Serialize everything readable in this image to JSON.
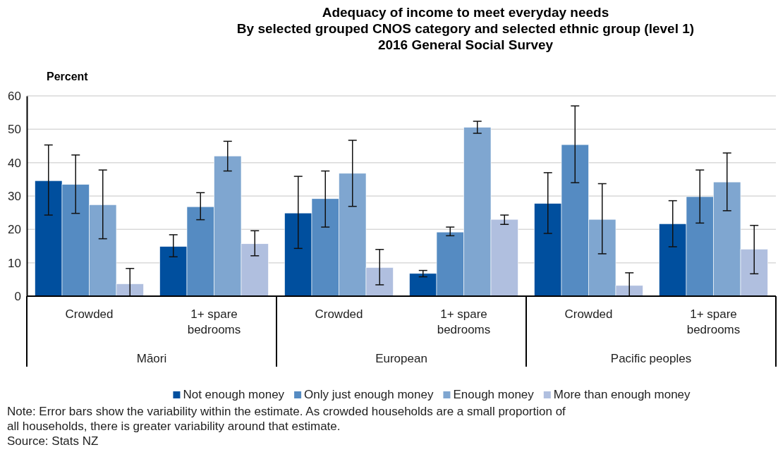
{
  "chart_data": {
    "type": "bar",
    "title": "Adequacy of income to meet everyday needs\nBy selected grouped CNOS category and selected ethnic group (level 1)\n2016 General Social Survey",
    "ylabel": "Percent",
    "categories": [
      "Crowded",
      "1+ spare bedrooms",
      "Crowded",
      "1+ spare bedrooms",
      "Crowded",
      "1+ spare bedrooms"
    ],
    "series": [
      {
        "name": "Not enough money",
        "color": "#004f9e",
        "values": [
          34.6,
          14.9,
          24.9,
          6.8,
          27.8,
          21.7
        ],
        "errors": [
          [
            24.3,
            45.3
          ],
          [
            11.8,
            18.4
          ],
          [
            14.3,
            35.9
          ],
          [
            5.8,
            7.7
          ],
          [
            18.8,
            37.0
          ],
          [
            14.8,
            28.6
          ]
        ]
      },
      {
        "name": "Only just enough money",
        "color": "#558bc2",
        "values": [
          33.5,
          26.8,
          29.2,
          19.2,
          45.4,
          29.8
        ],
        "errors": [
          [
            24.8,
            42.3
          ],
          [
            22.9,
            31.0
          ],
          [
            20.7,
            37.5
          ],
          [
            18.1,
            20.7
          ],
          [
            34.0,
            57.0
          ],
          [
            21.9,
            37.8
          ]
        ]
      },
      {
        "name": "Enough money",
        "color": "#7fa6d0",
        "values": [
          27.4,
          42.0,
          36.8,
          50.6,
          23.0,
          34.2
        ],
        "errors": [
          [
            17.2,
            37.8
          ],
          [
            37.5,
            46.4
          ],
          [
            26.9,
            46.7
          ],
          [
            48.8,
            52.4
          ],
          [
            12.7,
            33.7
          ],
          [
            25.6,
            42.9
          ]
        ]
      },
      {
        "name": "More than enough money",
        "color": "#b0bfdf",
        "values": [
          3.7,
          15.7,
          8.6,
          23.0,
          3.2,
          14.1
        ],
        "errors": [
          [
            0,
            8.3
          ],
          [
            12.1,
            19.6
          ],
          [
            3.4,
            14.0
          ],
          [
            21.5,
            24.3
          ],
          [
            0,
            7.0
          ],
          [
            6.7,
            21.2
          ]
        ]
      }
    ],
    "ylim": [
      0,
      60
    ],
    "yticks": [
      0,
      10,
      20,
      30,
      40,
      50,
      60
    ],
    "grid": "y",
    "legend": "bottom",
    "annotations": [
      "Māori",
      "European",
      "Pacific peoples",
      "Note: Error bars show the variability within the estimate. As crowded households are a small proportion of all households, there is greater variability around that estimate.",
      "Source: Stats NZ"
    ]
  }
}
